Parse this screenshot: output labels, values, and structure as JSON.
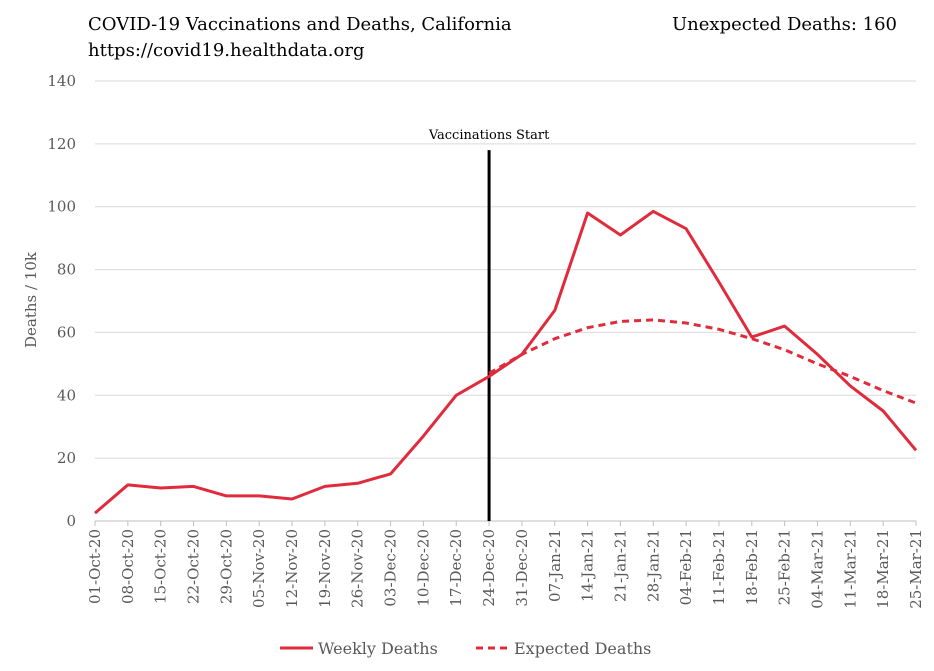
{
  "chart_data": {
    "type": "line",
    "title": "COVID-19 Vaccinations and Deaths, California",
    "subtitle": "https://covid19.healthdata.org",
    "top_right_note": "Unexpected Deaths: 160",
    "xlabel": "",
    "ylabel": "Deaths / 10k",
    "ylim": [
      0,
      140
    ],
    "yticks": [
      0,
      20,
      40,
      60,
      80,
      100,
      120,
      140
    ],
    "grid": true,
    "legend_position": "bottom-center",
    "categories": [
      "01-Oct-20",
      "08-Oct-20",
      "15-Oct-20",
      "22-Oct-20",
      "29-Oct-20",
      "05-Nov-20",
      "12-Nov-20",
      "19-Nov-20",
      "26-Nov-20",
      "03-Dec-20",
      "10-Dec-20",
      "17-Dec-20",
      "24-Dec-20",
      "31-Dec-20",
      "07-Jan-21",
      "14-Jan-21",
      "21-Jan-21",
      "28-Jan-21",
      "04-Feb-21",
      "11-Feb-21",
      "18-Feb-21",
      "25-Feb-21",
      "04-Mar-21",
      "11-Mar-21",
      "18-Mar-21",
      "25-Mar-21"
    ],
    "series": [
      {
        "name": "Weekly Deaths",
        "style": "solid",
        "color": "#e02b3c",
        "values": [
          2.5,
          11.5,
          10.5,
          11,
          8,
          8,
          7,
          11,
          12,
          15,
          27,
          40,
          46,
          53,
          67,
          98,
          91,
          98.5,
          93,
          76,
          58.5,
          62,
          53,
          43,
          35,
          22.5
        ]
      },
      {
        "name": "Expected Deaths",
        "style": "dashed",
        "color": "#e02b3c",
        "values": [
          null,
          null,
          null,
          null,
          null,
          null,
          null,
          null,
          null,
          null,
          null,
          null,
          47,
          53,
          58,
          61.5,
          63.5,
          64,
          63,
          61,
          58,
          54.5,
          50,
          46,
          41.5,
          37.5
        ]
      }
    ],
    "annotations": [
      {
        "label": "Vaccinations Start",
        "x_category": "24-Dec-20",
        "y_top": 118,
        "color": "#000000"
      }
    ],
    "colors": {
      "line": "#e02b3c",
      "grid": "#d9d9d9",
      "axis": "#bfbfbf",
      "marker": "#000000"
    }
  }
}
